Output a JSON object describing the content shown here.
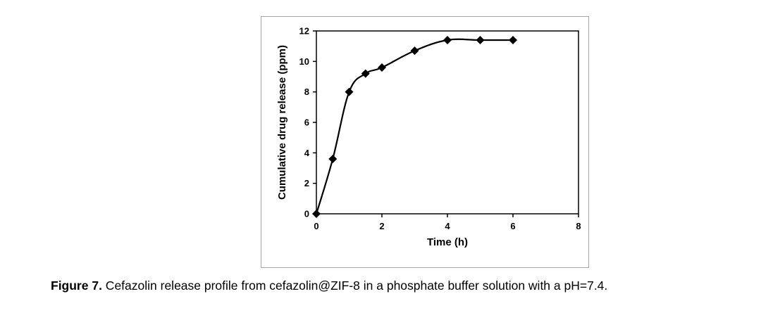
{
  "chart_data": {
    "type": "line",
    "title": "",
    "xlabel": "Time (h)",
    "ylabel": "Cumulative drug release (ppm)",
    "xlim": [
      0,
      8
    ],
    "ylim": [
      0,
      12
    ],
    "x_ticks": [
      0,
      2,
      4,
      6,
      8
    ],
    "y_ticks": [
      0,
      2,
      4,
      6,
      8,
      10,
      12
    ],
    "grid": false,
    "marker": "diamond",
    "smooth": true,
    "series": [
      {
        "x": [
          0,
          0.5,
          1,
          1.5,
          2,
          3,
          4,
          5,
          6
        ],
        "y": [
          0,
          3.6,
          8.0,
          9.2,
          9.6,
          10.7,
          11.4,
          11.4,
          11.4
        ]
      }
    ]
  },
  "caption": {
    "label": "Figure 7.",
    "text": " Cefazolin release profile from cefazolin@ZIF-8 in a phosphate buffer solution with a pH=7.4."
  },
  "colors": {
    "line": "#000000",
    "marker": "#000000",
    "frame": "#a6a6a6"
  }
}
